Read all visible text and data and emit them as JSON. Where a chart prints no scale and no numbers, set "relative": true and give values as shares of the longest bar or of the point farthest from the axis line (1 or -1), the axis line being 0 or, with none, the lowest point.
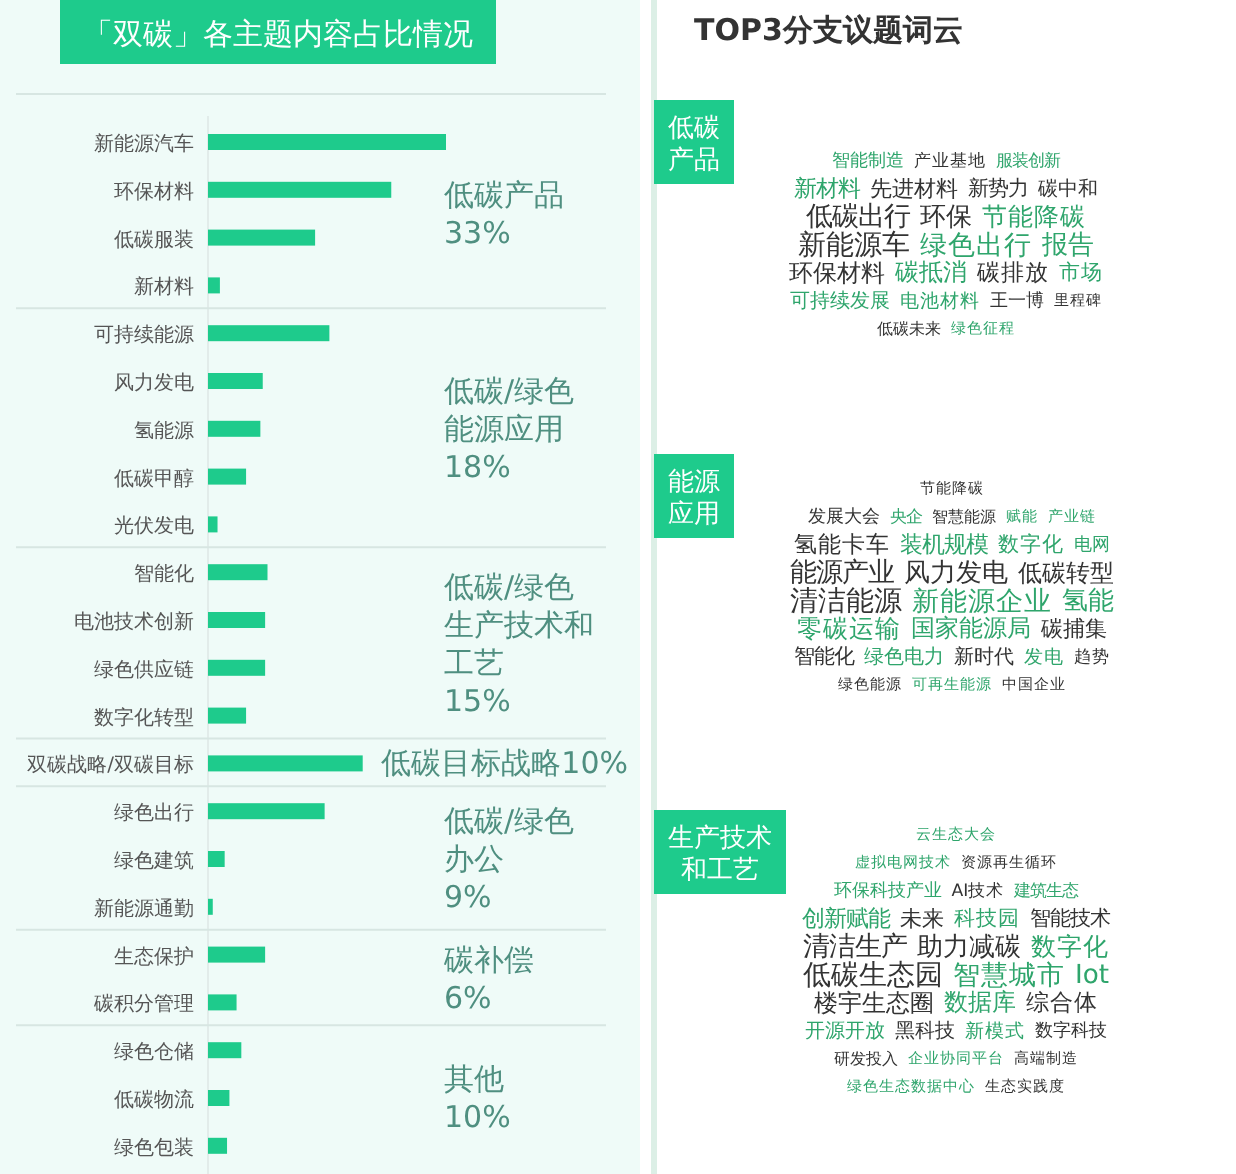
{
  "chart_data": [
    {
      "type": "bar",
      "title": "「双碳」各主题内容占比情况",
      "orientation": "horizontal",
      "relative": true,
      "categories": [
        "新能源汽车",
        "环保材料",
        "低碳服装",
        "新材料",
        "可持续能源",
        "风力发电",
        "氢能源",
        "低碳甲醇",
        "光伏发电",
        "智能化",
        "电池技术创新",
        "绿色供应链",
        "数字化转型",
        "双碳战略/双碳目标",
        "绿色出行",
        "绿色建筑",
        "新能源通勤",
        "生态保护",
        "碳积分管理",
        "绿色仓储",
        "低碳物流",
        "绿色包装"
      ],
      "series": [
        {
          "name": "低碳产品33%",
          "color": "#1ecb8c",
          "values": [
            1,
            0.77,
            0.45,
            0.05,
            null,
            null,
            null,
            null,
            null,
            null,
            null,
            null,
            null,
            null,
            null,
            null,
            null,
            null,
            null,
            null,
            null,
            null
          ]
        },
        {
          "name": "低碳/绿色能源应用18%",
          "color": "#1ecb8c",
          "values": [
            null,
            null,
            null,
            null,
            0.51,
            0.23,
            0.22,
            0.16,
            0.04,
            null,
            null,
            null,
            null,
            null,
            null,
            null,
            null,
            null,
            null,
            null,
            null,
            null
          ]
        },
        {
          "name": "低碳/绿色生产技术和工艺15%",
          "color": "#1ecb8c",
          "values": [
            null,
            null,
            null,
            null,
            null,
            null,
            null,
            null,
            null,
            0.25,
            0.24,
            0.24,
            0.16,
            null,
            null,
            null,
            null,
            null,
            null,
            null,
            null,
            null
          ]
        },
        {
          "name": "低碳目标战略10%",
          "color": "#1ecb8c",
          "values": [
            null,
            null,
            null,
            null,
            null,
            null,
            null,
            null,
            null,
            null,
            null,
            null,
            null,
            0.65,
            null,
            null,
            null,
            null,
            null,
            null,
            null,
            null
          ]
        },
        {
          "name": "低碳/绿色办公9%",
          "color": "#1ecb8c",
          "values": [
            null,
            null,
            null,
            null,
            null,
            null,
            null,
            null,
            null,
            null,
            null,
            null,
            null,
            null,
            0.49,
            0.07,
            0.02,
            null,
            null,
            null,
            null,
            null
          ]
        },
        {
          "name": "碳补偿6%",
          "color": "#1ecb8c",
          "values": [
            null,
            null,
            null,
            null,
            null,
            null,
            null,
            null,
            null,
            null,
            null,
            null,
            null,
            null,
            null,
            null,
            null,
            0.24,
            0.12,
            null,
            null,
            null
          ]
        },
        {
          "name": "其他10%",
          "color": "#1ecb8c",
          "values": [
            null,
            null,
            null,
            null,
            null,
            null,
            null,
            null,
            null,
            null,
            null,
            null,
            null,
            null,
            null,
            null,
            null,
            null,
            null,
            0.14,
            0.09,
            0.08
          ]
        }
      ]
    },
    {
      "type": "other",
      "title": "TOP3分支议题词云"
    },
    {
      "type": "other",
      "title": "低碳产品",
      "annotations": [
        "新能源车",
        "绿色出行",
        "低碳出行",
        "报告",
        "环保",
        "节能降碳",
        "环保材料",
        "碳抵消",
        "碳排放",
        "新材料",
        "先进材料",
        "市场",
        "新势力",
        "可持续发展",
        "碳中和",
        "电池材料",
        "王一博",
        "智能制造",
        "产业基地",
        "服装创新",
        "低碳未来",
        "绿色征程",
        "里程碑"
      ]
    },
    {
      "type": "other",
      "title": "能源应用",
      "annotations": [
        "清洁能源",
        "新能源企业",
        "能源产业",
        "氢能",
        "风力发电",
        "零碳运输",
        "低碳转型",
        "国家能源局",
        "氢能卡车",
        "装机规模",
        "碳捕集",
        "数字化",
        "智能化",
        "绿色电力",
        "新时代",
        "发电",
        "发展大会",
        "电网",
        "趋势",
        "央企",
        "智慧能源",
        "赋能",
        "绿色能源",
        "可再生能源",
        "中国企业",
        "产业链",
        "节能降碳"
      ]
    },
    {
      "type": "other",
      "title": "生产技术和工艺",
      "annotations": [
        "低碳生态园",
        "智慧城市",
        "清洁生产",
        "Iot",
        "助力减碳",
        "数字化",
        "楼宇生态圈",
        "数据库",
        "综合体",
        "创新赋能",
        "未来",
        "科技园",
        "智能技术",
        "开源开放",
        "黑科技",
        "新模式",
        "数字科技",
        "环保科技产业",
        "AI技术",
        "建筑生态",
        "研发投入",
        "企业协同平台",
        "高端制造",
        "虚拟电网技术",
        "资源再生循环",
        "绿色生态数据中心",
        "生态实践度",
        "云生态大会"
      ]
    }
  ]
}
